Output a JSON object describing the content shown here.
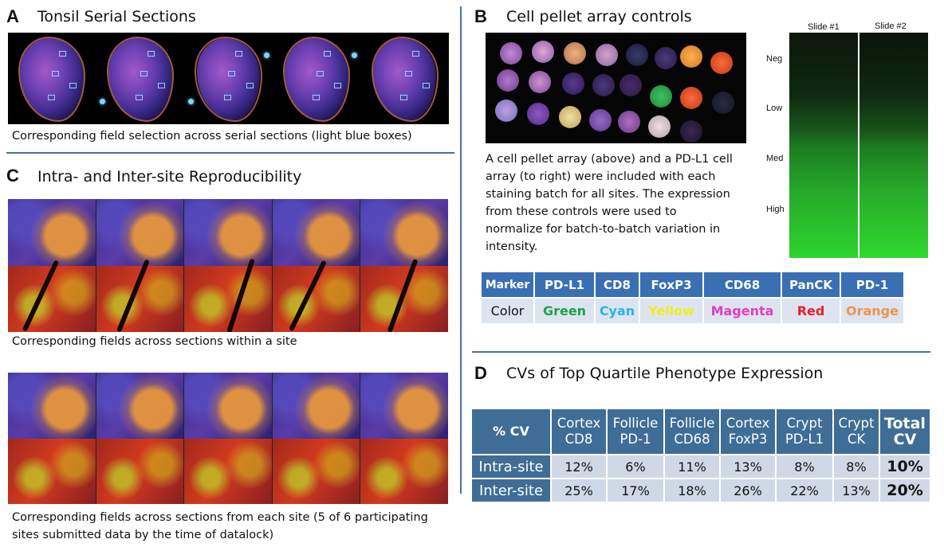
{
  "panels": {
    "a": {
      "letter": "A",
      "title": "Tonsil Serial Sections",
      "caption": "Corresponding field selection across serial sections (light blue boxes)"
    },
    "b": {
      "letter": "B",
      "title": "Cell pellet array controls",
      "description_lines": [
        "A cell pellet array (above) and a PD-L1 cell",
        "array (to right) were included with each",
        "staining batch for all sites. The expression",
        "from these controls were used to",
        "normalize for batch-to-batch variation in",
        "intensity."
      ],
      "slides": [
        "Slide #1",
        "Slide #2"
      ],
      "levels": [
        "Neg",
        "Low",
        "Med",
        "High"
      ]
    },
    "c": {
      "letter": "C",
      "title": "Intra- and Inter-site Reproducibility",
      "caption_within": "Corresponding fields across sections within a site",
      "caption_each_lines": [
        "Corresponding fields across sections from each site (5 of 6 participating",
        "sites submitted data by the time of datalock)"
      ]
    },
    "d": {
      "letter": "D",
      "title": "CVs of Top Quartile Phenotype Expression"
    }
  },
  "marker_table": {
    "header_label": "Marker",
    "row_label": "Color",
    "markers": [
      {
        "marker": "PD-L1",
        "color": "Green",
        "hex": "#1fa04a"
      },
      {
        "marker": "CD8",
        "color": "Cyan",
        "hex": "#26b6e6"
      },
      {
        "marker": "FoxP3",
        "color": "Yellow",
        "hex": "#f2ee1a"
      },
      {
        "marker": "CD68",
        "color": "Magenta",
        "hex": "#e43cc0"
      },
      {
        "marker": "PanCK",
        "color": "Red",
        "hex": "#e8202a"
      },
      {
        "marker": "PD-1",
        "color": "Orange",
        "hex": "#f0934a"
      }
    ]
  },
  "cv_table": {
    "corner": "% CV",
    "columns": [
      [
        "Cortex",
        "CD8"
      ],
      [
        "Follicle",
        "PD-1"
      ],
      [
        "Follicle",
        "CD68"
      ],
      [
        "Cortex",
        "FoxP3"
      ],
      [
        "Crypt",
        "PD-L1"
      ],
      [
        "Crypt",
        "CK"
      ]
    ],
    "total_header": [
      "Total",
      "CV"
    ],
    "rows": [
      {
        "label": "Intra-site",
        "values": [
          "12%",
          "6%",
          "11%",
          "13%",
          "8%",
          "8%"
        ],
        "total": "10%"
      },
      {
        "label": "Inter-site",
        "values": [
          "25%",
          "17%",
          "18%",
          "26%",
          "22%",
          "13%"
        ],
        "total": "20%"
      }
    ]
  },
  "colors": {
    "accent_line": "#4a6fa5",
    "marker_header": "#3a6fb3",
    "cv_header": "#3f6d96",
    "cv_cell": "#cfd9e6"
  }
}
